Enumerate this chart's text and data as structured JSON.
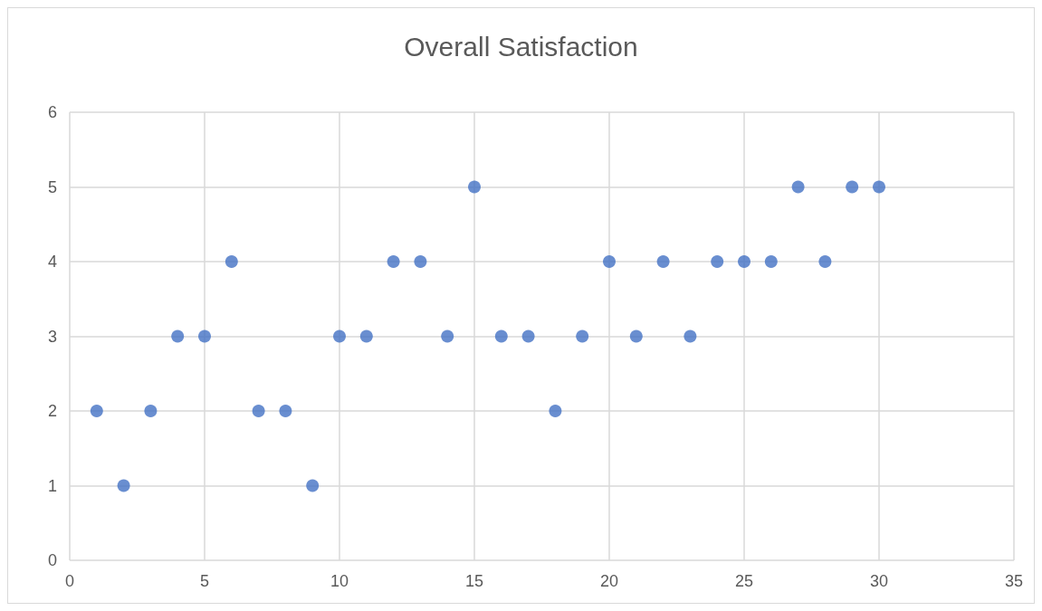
{
  "chart_data": {
    "type": "scatter",
    "title": "Overall Satisfaction",
    "x": [
      1,
      2,
      3,
      4,
      5,
      6,
      7,
      8,
      9,
      10,
      11,
      12,
      13,
      14,
      15,
      16,
      17,
      18,
      19,
      20,
      21,
      22,
      23,
      24,
      25,
      26,
      27,
      28,
      29,
      30
    ],
    "values": [
      2,
      1,
      2,
      3,
      3,
      4,
      2,
      2,
      1,
      3,
      3,
      4,
      4,
      3,
      5,
      3,
      3,
      2,
      3,
      4,
      3,
      4,
      3,
      4,
      4,
      4,
      5,
      4,
      5,
      5
    ],
    "color": "#4472c4",
    "marker": "circle",
    "xlim": [
      0,
      35
    ],
    "xticks": [
      0,
      5,
      10,
      15,
      20,
      25,
      30,
      35
    ],
    "ylim": [
      0,
      6
    ],
    "yticks": [
      0,
      1,
      2,
      3,
      4,
      5,
      6
    ],
    "grid": true
  }
}
